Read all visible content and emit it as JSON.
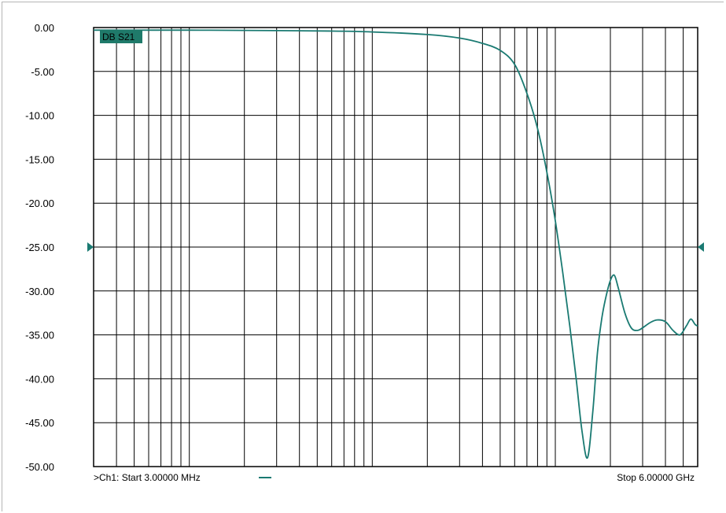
{
  "chart_data": {
    "type": "line",
    "trace_label": "DB S21",
    "xscale": "log",
    "x_unit": "Hz",
    "xlim": [
      3000000,
      6000000000
    ],
    "ylim": [
      -50,
      0
    ],
    "yticks": [
      "0.00",
      "-5.00",
      "-10.00",
      "-15.00",
      "-20.00",
      "-25.00",
      "-30.00",
      "-35.00",
      "-40.00",
      "-45.00",
      "-50.00"
    ],
    "reference_level": -25,
    "grid": true,
    "series": [
      {
        "color": "#1a7a72",
        "x": [
          3000000,
          10000000,
          30000000,
          60000000,
          100000000,
          200000000,
          300000000,
          400000000,
          500000000,
          600000000,
          700000000,
          800000000,
          900000000,
          1000000000,
          1100000000,
          1200000000,
          1300000000,
          1400000000,
          1500000000,
          1600000000,
          1700000000,
          1800000000,
          1900000000,
          2000000000,
          2100000000,
          2200000000,
          2400000000,
          2600000000,
          2800000000,
          3000000000,
          3300000000,
          3600000000,
          4000000000,
          4400000000,
          4800000000,
          5200000000,
          5500000000,
          5800000000,
          6000000000
        ],
        "y": [
          -0.3,
          -0.3,
          -0.35,
          -0.4,
          -0.5,
          -0.8,
          -1.2,
          -1.8,
          -2.6,
          -4.2,
          -7.5,
          -11.5,
          -16.5,
          -22,
          -28,
          -34,
          -40,
          -46,
          -49,
          -44,
          -37,
          -33,
          -30.5,
          -28.8,
          -28.2,
          -29.5,
          -32.5,
          -34.2,
          -34.5,
          -34.2,
          -33.6,
          -33.3,
          -33.5,
          -34.5,
          -35,
          -34,
          -33.2,
          -33.8,
          -34
        ]
      }
    ],
    "footer": {
      "start": ">Ch1: Start  3.00000 MHz",
      "stop": "Stop  6.00000 GHz"
    }
  }
}
